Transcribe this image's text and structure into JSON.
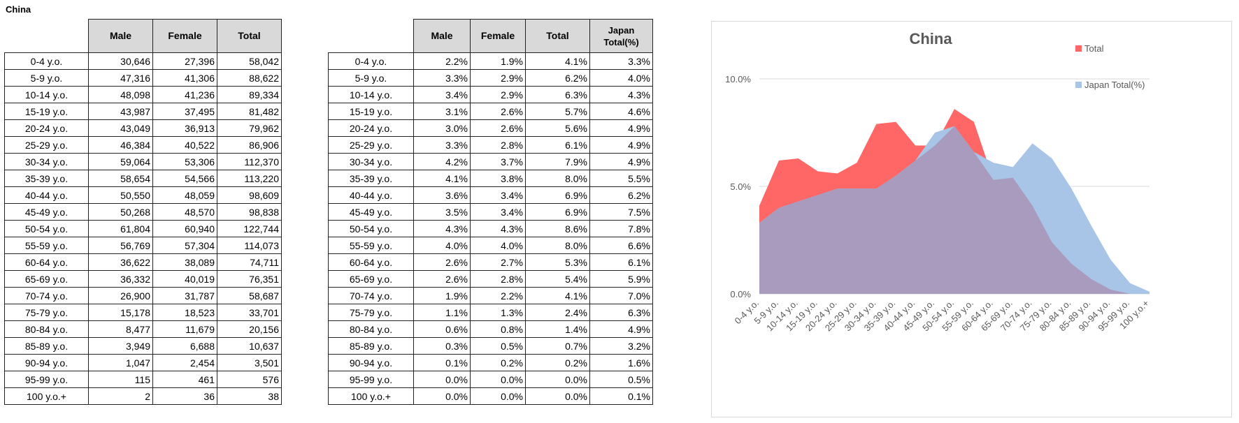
{
  "sheet_title": "China",
  "table_counts": {
    "headers": [
      "Male",
      "Female",
      "Total"
    ],
    "rows": [
      {
        "age": "0-4 y.o.",
        "male": "30,646",
        "female": "27,396",
        "total": "58,042"
      },
      {
        "age": "5-9 y.o.",
        "male": "47,316",
        "female": "41,306",
        "total": "88,622"
      },
      {
        "age": "10-14 y.o.",
        "male": "48,098",
        "female": "41,236",
        "total": "89,334"
      },
      {
        "age": "15-19 y.o.",
        "male": "43,987",
        "female": "37,495",
        "total": "81,482"
      },
      {
        "age": "20-24 y.o.",
        "male": "43,049",
        "female": "36,913",
        "total": "79,962"
      },
      {
        "age": "25-29 y.o.",
        "male": "46,384",
        "female": "40,522",
        "total": "86,906"
      },
      {
        "age": "30-34 y.o.",
        "male": "59,064",
        "female": "53,306",
        "total": "112,370"
      },
      {
        "age": "35-39 y.o.",
        "male": "58,654",
        "female": "54,566",
        "total": "113,220"
      },
      {
        "age": "40-44 y.o.",
        "male": "50,550",
        "female": "48,059",
        "total": "98,609"
      },
      {
        "age": "45-49 y.o.",
        "male": "50,268",
        "female": "48,570",
        "total": "98,838"
      },
      {
        "age": "50-54 y.o.",
        "male": "61,804",
        "female": "60,940",
        "total": "122,744"
      },
      {
        "age": "55-59 y.o.",
        "male": "56,769",
        "female": "57,304",
        "total": "114,073"
      },
      {
        "age": "60-64 y.o.",
        "male": "36,622",
        "female": "38,089",
        "total": "74,711"
      },
      {
        "age": "65-69 y.o.",
        "male": "36,332",
        "female": "40,019",
        "total": "76,351"
      },
      {
        "age": "70-74 y.o.",
        "male": "26,900",
        "female": "31,787",
        "total": "58,687"
      },
      {
        "age": "75-79 y.o.",
        "male": "15,178",
        "female": "18,523",
        "total": "33,701"
      },
      {
        "age": "80-84 y.o.",
        "male": "8,477",
        "female": "11,679",
        "total": "20,156"
      },
      {
        "age": "85-89 y.o.",
        "male": "3,949",
        "female": "6,688",
        "total": "10,637"
      },
      {
        "age": "90-94 y.o.",
        "male": "1,047",
        "female": "2,454",
        "total": "3,501"
      },
      {
        "age": "95-99 y.o.",
        "male": "115",
        "female": "461",
        "total": "576"
      },
      {
        "age": "100 y.o.+",
        "male": "2",
        "female": "36",
        "total": "38"
      }
    ]
  },
  "table_percent": {
    "headers": [
      "Male",
      "Female",
      "Total",
      "Japan Total(%)"
    ],
    "rows": [
      {
        "age": "0-4 y.o.",
        "male": "2.2%",
        "female": "1.9%",
        "total": "4.1%",
        "japan": "3.3%"
      },
      {
        "age": "5-9 y.o.",
        "male": "3.3%",
        "female": "2.9%",
        "total": "6.2%",
        "japan": "4.0%"
      },
      {
        "age": "10-14 y.o.",
        "male": "3.4%",
        "female": "2.9%",
        "total": "6.3%",
        "japan": "4.3%"
      },
      {
        "age": "15-19 y.o.",
        "male": "3.1%",
        "female": "2.6%",
        "total": "5.7%",
        "japan": "4.6%"
      },
      {
        "age": "20-24 y.o.",
        "male": "3.0%",
        "female": "2.6%",
        "total": "5.6%",
        "japan": "4.9%"
      },
      {
        "age": "25-29 y.o.",
        "male": "3.3%",
        "female": "2.8%",
        "total": "6.1%",
        "japan": "4.9%"
      },
      {
        "age": "30-34 y.o.",
        "male": "4.2%",
        "female": "3.7%",
        "total": "7.9%",
        "japan": "4.9%"
      },
      {
        "age": "35-39 y.o.",
        "male": "4.1%",
        "female": "3.8%",
        "total": "8.0%",
        "japan": "5.5%"
      },
      {
        "age": "40-44 y.o.",
        "male": "3.6%",
        "female": "3.4%",
        "total": "6.9%",
        "japan": "6.2%"
      },
      {
        "age": "45-49 y.o.",
        "male": "3.5%",
        "female": "3.4%",
        "total": "6.9%",
        "japan": "7.5%"
      },
      {
        "age": "50-54 y.o.",
        "male": "4.3%",
        "female": "4.3%",
        "total": "8.6%",
        "japan": "7.8%"
      },
      {
        "age": "55-59 y.o.",
        "male": "4.0%",
        "female": "4.0%",
        "total": "8.0%",
        "japan": "6.6%"
      },
      {
        "age": "60-64 y.o.",
        "male": "2.6%",
        "female": "2.7%",
        "total": "5.3%",
        "japan": "6.1%"
      },
      {
        "age": "65-69 y.o.",
        "male": "2.6%",
        "female": "2.8%",
        "total": "5.4%",
        "japan": "5.9%"
      },
      {
        "age": "70-74 y.o.",
        "male": "1.9%",
        "female": "2.2%",
        "total": "4.1%",
        "japan": "7.0%"
      },
      {
        "age": "75-79 y.o.",
        "male": "1.1%",
        "female": "1.3%",
        "total": "2.4%",
        "japan": "6.3%"
      },
      {
        "age": "80-84 y.o.",
        "male": "0.6%",
        "female": "0.8%",
        "total": "1.4%",
        "japan": "4.9%"
      },
      {
        "age": "85-89 y.o.",
        "male": "0.3%",
        "female": "0.5%",
        "total": "0.7%",
        "japan": "3.2%"
      },
      {
        "age": "90-94 y.o.",
        "male": "0.1%",
        "female": "0.2%",
        "total": "0.2%",
        "japan": "1.6%"
      },
      {
        "age": "95-99 y.o.",
        "male": "0.0%",
        "female": "0.0%",
        "total": "0.0%",
        "japan": "0.5%"
      },
      {
        "age": "100 y.o.+",
        "male": "0.0%",
        "female": "0.0%",
        "total": "0.0%",
        "japan": "0.1%"
      }
    ]
  },
  "chart_data": {
    "type": "area",
    "title": "China",
    "categories": [
      "0-4 y.o.",
      "5-9 y.o.",
      "10-14 y.o.",
      "15-19 y.o.",
      "20-24 y.o.",
      "25-29 y.o.",
      "30-34 y.o.",
      "35-39 y.o.",
      "40-44 y.o.",
      "45-49 y.o.",
      "50-54 y.o.",
      "55-59 y.o.",
      "60-64 y.o.",
      "65-69 y.o.",
      "70-74 y.o.",
      "75-79 y.o.",
      "80-84 y.o.",
      "85-89 y.o.",
      "90-94 y.o.",
      "95-99 y.o.",
      "100 y.o.+"
    ],
    "series": [
      {
        "name": "Total",
        "color": "#ff6666",
        "values": [
          4.1,
          6.2,
          6.3,
          5.7,
          5.6,
          6.1,
          7.9,
          8.0,
          6.9,
          6.9,
          8.6,
          8.0,
          5.3,
          5.4,
          4.1,
          2.4,
          1.4,
          0.7,
          0.2,
          0.0,
          0.0
        ]
      },
      {
        "name": "Japan Total(%)",
        "color": "#a8c4e6",
        "values": [
          3.3,
          4.0,
          4.3,
          4.6,
          4.9,
          4.9,
          4.9,
          5.5,
          6.2,
          7.5,
          7.8,
          6.6,
          6.1,
          5.9,
          7.0,
          6.3,
          4.9,
          3.2,
          1.6,
          0.5,
          0.1
        ]
      }
    ],
    "overlap_color": "#a89bbd",
    "y_ticks": [
      "0.0%",
      "5.0%",
      "10.0%"
    ],
    "y_tick_values": [
      0,
      5,
      10
    ],
    "ylim": [
      0,
      10
    ],
    "legend_position": "top-right",
    "gridlines": true
  }
}
